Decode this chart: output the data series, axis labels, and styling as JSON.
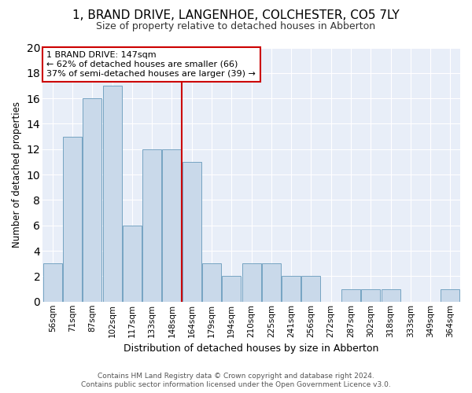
{
  "title": "1, BRAND DRIVE, LANGENHOE, COLCHESTER, CO5 7LY",
  "subtitle": "Size of property relative to detached houses in Abberton",
  "xlabel": "Distribution of detached houses by size in Abberton",
  "ylabel": "Number of detached properties",
  "bar_color": "#c9d9ea",
  "bar_edge_color": "#6699bb",
  "background_color": "#e8eef8",
  "grid_color": "#ffffff",
  "categories": [
    "56sqm",
    "71sqm",
    "87sqm",
    "102sqm",
    "117sqm",
    "133sqm",
    "148sqm",
    "164sqm",
    "179sqm",
    "194sqm",
    "210sqm",
    "225sqm",
    "241sqm",
    "256sqm",
    "272sqm",
    "287sqm",
    "302sqm",
    "318sqm",
    "333sqm",
    "349sqm",
    "364sqm"
  ],
  "values": [
    3,
    13,
    16,
    17,
    6,
    12,
    12,
    11,
    3,
    2,
    3,
    3,
    2,
    2,
    0,
    1,
    1,
    1,
    0,
    0,
    1
  ],
  "annotation_line1": "1 BRAND DRIVE: 147sqm",
  "annotation_line2": "← 62% of detached houses are smaller (66)",
  "annotation_line3": "37% of semi-detached houses are larger (39) →",
  "vline_color": "#cc0000",
  "vline_index": 6.5,
  "ylim": [
    0,
    20
  ],
  "yticks": [
    0,
    2,
    4,
    6,
    8,
    10,
    12,
    14,
    16,
    18,
    20
  ],
  "footer1": "Contains HM Land Registry data © Crown copyright and database right 2024.",
  "footer2": "Contains public sector information licensed under the Open Government Licence v3.0."
}
